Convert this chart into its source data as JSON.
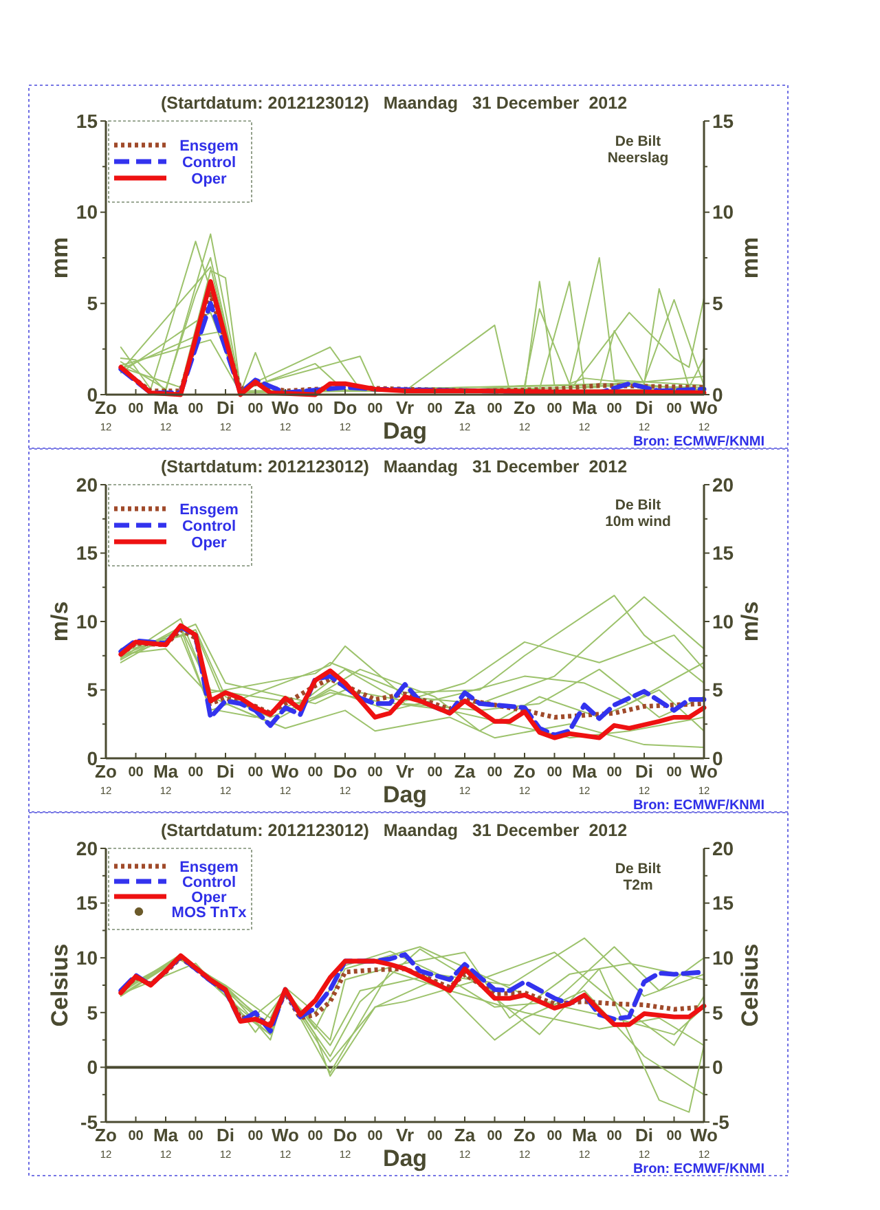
{
  "chart_data": [
    {
      "type": "line",
      "title": "(Startdatum: 2012123012)   Maandag   31 December  2012",
      "xlabel": "Dag",
      "ylabel": "mm",
      "y2label": "mm",
      "annotations": [
        "De Bilt",
        "Neerslag",
        "Bron: ECMWF/KNMI"
      ],
      "legend": "top left",
      "xlim": [
        "2012-12-30T12:00",
        "2013-01-09T12:00"
      ],
      "xticks": [
        {
          "value": "2012-12-30T12:00",
          "label": "Zo\n12"
        },
        {
          "value": "2012-12-31T00:00",
          "label": "00"
        },
        {
          "value": "2012-12-31T12:00",
          "label": "Ma\n12"
        },
        {
          "value": "2013-01-01T00:00",
          "label": "00"
        },
        {
          "value": "2013-01-01T12:00",
          "label": "Di\n12"
        },
        {
          "value": "2013-01-02T00:00",
          "label": "00"
        },
        {
          "value": "2013-01-02T12:00",
          "label": "Wo\n12"
        },
        {
          "value": "2013-01-03T00:00",
          "label": "00"
        },
        {
          "value": "2013-01-03T12:00",
          "label": "Do\n12"
        },
        {
          "value": "2013-01-04T00:00",
          "label": "00"
        },
        {
          "value": "2013-01-04T12:00",
          "label": "Vr"
        },
        {
          "value": "2013-01-05T00:00",
          "label": "00"
        },
        {
          "value": "2013-01-05T12:00",
          "label": "Za\n12"
        },
        {
          "value": "2013-01-06T00:00",
          "label": "00"
        },
        {
          "value": "2013-01-06T12:00",
          "label": "Zo\n12"
        },
        {
          "value": "2013-01-07T00:00",
          "label": "00"
        },
        {
          "value": "2013-01-07T12:00",
          "label": "Ma\n12"
        },
        {
          "value": "2013-01-08T00:00",
          "label": "00"
        },
        {
          "value": "2013-01-08T12:00",
          "label": "Di\n12"
        },
        {
          "value": "2013-01-09T00:00",
          "label": "00"
        },
        {
          "value": "2013-01-09T12:00",
          "label": "Wo\n12"
        }
      ],
      "ylim": [
        0,
        15
      ],
      "yticks": [
        0,
        {
          "value": 2.5,
          "label": null
        },
        5,
        {
          "value": 7.5,
          "label": null
        },
        10,
        {
          "value": 12.5,
          "label": null
        },
        15
      ],
      "y2lim": [
        0,
        15
      ],
      "y2ticks": [
        0,
        {
          "value": 2.5,
          "label": null
        },
        5,
        {
          "value": 7.5,
          "label": null
        },
        10,
        {
          "value": 12.5,
          "label": null
        },
        15
      ],
      "series": [
        {
          "color": "#9cc26b",
          "line_style": "solid",
          "x": [
            "2012-12-30T18:00",
            "2012-12-31T06:00",
            "2013-01-01T00:00",
            "2013-01-01T12:00",
            "2013-01-01T18:00",
            "2013-01-02T00:00",
            "2013-01-02T06:00",
            "2013-01-04T12:00",
            "2013-01-06T00:00",
            "2013-01-06T06:00",
            "2013-01-09T12:00"
          ],
          "values": [
            2.6,
            0.3,
            8.4,
            3,
            0.1,
            2.3,
            0.2,
            0.2,
            3.8,
            0.2,
            0.3
          ]
        },
        {
          "color": "#9cc26b",
          "line_style": "solid",
          "x": [
            "2012-12-30T18:00",
            "2012-12-31T00:00",
            "2012-12-31T12:00",
            "2013-01-01T06:00",
            "2013-01-01T18:00",
            "2013-01-03T06:00",
            "2013-01-03T18:00",
            "2013-01-06T12:00",
            "2013-01-06T18:00",
            "2013-01-07T00:00",
            "2013-01-09T12:00"
          ],
          "values": [
            2.0,
            1.9,
            0.2,
            8.8,
            0.3,
            2.6,
            0.3,
            0.2,
            6.2,
            0.5,
            0.4
          ]
        },
        {
          "color": "#9cc26b",
          "line_style": "solid",
          "x": [
            "2012-12-30T18:00",
            "2012-12-31T12:00",
            "2013-01-01T00:00",
            "2013-01-01T06:00",
            "2013-01-01T18:00",
            "2013-01-03T00:00",
            "2013-01-03T12:00",
            "2013-01-06T18:00",
            "2013-01-07T06:00",
            "2013-01-07T12:00",
            "2013-01-09T12:00"
          ],
          "values": [
            1.8,
            0.3,
            5.5,
            7.5,
            0.2,
            1.7,
            0.2,
            0.3,
            6.2,
            0.4,
            1.0
          ]
        },
        {
          "color": "#9cc26b",
          "line_style": "solid",
          "x": [
            "2012-12-30T18:00",
            "2012-12-31T18:00",
            "2013-01-01T06:00",
            "2013-01-01T12:00",
            "2013-01-01T18:00",
            "2013-01-03T18:00",
            "2013-01-04T00:00",
            "2013-01-07T06:00",
            "2013-01-07T18:00",
            "2013-01-08T00:00",
            "2013-01-09T12:00"
          ],
          "values": [
            1.5,
            0.4,
            6.8,
            6.4,
            0.3,
            2.1,
            0.3,
            0.5,
            7.5,
            0.8,
            0.5
          ]
        },
        {
          "color": "#9cc26b",
          "line_style": "solid",
          "x": [
            "2012-12-30T18:00",
            "2013-01-01T00:00",
            "2013-01-01T06:00",
            "2013-01-01T18:00",
            "2013-01-05T18:00",
            "2013-01-06T12:00",
            "2013-01-06T18:00",
            "2013-01-07T06:00",
            "2013-01-07T12:00",
            "2013-01-09T12:00"
          ],
          "values": [
            1.2,
            4.0,
            4.5,
            0.2,
            0.3,
            0.5,
            4.7,
            0.6,
            0.9,
            0.2
          ]
        },
        {
          "color": "#9cc26b",
          "line_style": "solid",
          "x": [
            "2012-12-30T18:00",
            "2013-01-01T00:00",
            "2013-01-01T12:00",
            "2013-01-01T18:00",
            "2013-01-07T18:00",
            "2013-01-08T00:00",
            "2013-01-08T12:00",
            "2013-01-08T18:00",
            "2013-01-09T06:00",
            "2013-01-09T12:00"
          ],
          "values": [
            1.4,
            3.2,
            3.5,
            0.1,
            0.4,
            3.5,
            0.6,
            5.8,
            0.4,
            2.0
          ]
        },
        {
          "color": "#9cc26b",
          "line_style": "solid",
          "x": [
            "2012-12-30T18:00",
            "2013-01-01T06:00",
            "2013-01-01T18:00",
            "2013-01-08T00:00",
            "2013-01-08T12:00",
            "2013-01-09T00:00",
            "2013-01-09T12:00"
          ],
          "values": [
            1.6,
            3.0,
            0.1,
            0.6,
            0.7,
            5.2,
            0.5
          ]
        },
        {
          "color": "#9cc26b",
          "line_style": "solid",
          "x": [
            "2012-12-30T18:00",
            "2013-01-01T06:00",
            "2013-01-01T18:00",
            "2013-01-07T06:00",
            "2013-01-08T06:00",
            "2013-01-09T00:00",
            "2013-01-09T06:00",
            "2013-01-09T12:00"
          ],
          "values": [
            1.3,
            7.0,
            0.2,
            0.2,
            4.5,
            2.0,
            1.5,
            5.3
          ]
        },
        {
          "name": "Ensgem",
          "color": "#a04a2a",
          "line_style": "dotted",
          "x": [
            "2012-12-30T18:00",
            "2012-12-31T06:00",
            "2012-12-31T18:00",
            "2013-01-01T06:00",
            "2013-01-01T18:00",
            "2013-01-02T00:00",
            "2013-01-02T12:00",
            "2013-01-03T12:00",
            "2013-01-04T12:00",
            "2013-01-05T18:00",
            "2013-01-07T00:00",
            "2013-01-07T18:00",
            "2013-01-09T12:00"
          ],
          "values": [
            1.4,
            0.2,
            0.2,
            5.5,
            0.3,
            0.6,
            0.2,
            0.4,
            0.3,
            0.2,
            0.3,
            0.5,
            0.4
          ]
        },
        {
          "name": "Control",
          "color": "#3333ee",
          "line_style": "dashed",
          "x": [
            "2012-12-30T18:00",
            "2012-12-31T06:00",
            "2012-12-31T18:00",
            "2013-01-01T06:00",
            "2013-01-01T18:00",
            "2013-01-02T00:00",
            "2013-01-02T12:00",
            "2013-01-03T12:00",
            "2013-01-04T00:00",
            "2013-01-05T18:00",
            "2013-01-07T18:00",
            "2013-01-08T06:00",
            "2013-01-08T18:00",
            "2013-01-09T12:00"
          ],
          "values": [
            1.4,
            0.1,
            0.1,
            5.0,
            0.1,
            0.8,
            0.1,
            0.4,
            0.3,
            0.2,
            0.1,
            0.6,
            0.2,
            0.3
          ]
        },
        {
          "name": "Oper",
          "color": "#ee1111",
          "line_style": "solid",
          "x": [
            "2012-12-30T18:00",
            "2012-12-31T00:00",
            "2012-12-31T06:00",
            "2012-12-31T18:00",
            "2013-01-01T06:00",
            "2013-01-01T18:00",
            "2013-01-02T00:00",
            "2013-01-02T06:00",
            "2013-01-03T00:00",
            "2013-01-03T06:00",
            "2013-01-03T12:00",
            "2013-01-04T00:00",
            "2013-01-04T12:00",
            "2013-01-05T18:00",
            "2013-01-07T00:00",
            "2013-01-08T06:00",
            "2013-01-09T12:00"
          ],
          "values": [
            1.5,
            0.8,
            0.1,
            0.0,
            6.2,
            0.0,
            0.7,
            0.1,
            0.0,
            0.6,
            0.6,
            0.3,
            0.2,
            0.2,
            0.15,
            0.15,
            0.1
          ]
        }
      ]
    },
    {
      "type": "line",
      "title": "(Startdatum: 2012123012)   Maandag   31 December  2012",
      "xlabel": "Dag",
      "ylabel": "m/s",
      "y2label": "m/s",
      "annotations": [
        "De Bilt",
        "10m wind",
        "Bron: ECMWF/KNMI"
      ],
      "legend": "top left",
      "xlim": [
        "2012-12-30T12:00",
        "2013-01-09T12:00"
      ],
      "xticks": [
        {
          "value": "2012-12-30T12:00",
          "label": "Zo\n12"
        },
        {
          "value": "2012-12-31T00:00",
          "label": "00"
        },
        {
          "value": "2012-12-31T12:00",
          "label": "Ma\n12"
        },
        {
          "value": "2013-01-01T00:00",
          "label": "00"
        },
        {
          "value": "2013-01-01T12:00",
          "label": "Di\n12"
        },
        {
          "value": "2013-01-02T00:00",
          "label": "00"
        },
        {
          "value": "2013-01-02T12:00",
          "label": "Wo\n12"
        },
        {
          "value": "2013-01-03T00:00",
          "label": "00"
        },
        {
          "value": "2013-01-03T12:00",
          "label": "Do\n12"
        },
        {
          "value": "2013-01-04T00:00",
          "label": "00"
        },
        {
          "value": "2013-01-04T12:00",
          "label": "Vr"
        },
        {
          "value": "2013-01-05T00:00",
          "label": "00"
        },
        {
          "value": "2013-01-05T12:00",
          "label": "Za\n12"
        },
        {
          "value": "2013-01-06T00:00",
          "label": "00"
        },
        {
          "value": "2013-01-06T12:00",
          "label": "Zo\n12"
        },
        {
          "value": "2013-01-07T00:00",
          "label": "00"
        },
        {
          "value": "2013-01-07T12:00",
          "label": "Ma\n12"
        },
        {
          "value": "2013-01-08T00:00",
          "label": "00"
        },
        {
          "value": "2013-01-08T12:00",
          "label": "Di\n12"
        },
        {
          "value": "2013-01-09T00:00",
          "label": "00"
        },
        {
          "value": "2013-01-09T12:00",
          "label": "Wo\n12"
        }
      ],
      "ylim": [
        0,
        20
      ],
      "yticks": [
        0,
        {
          "value": 2.5,
          "label": null
        },
        5,
        {
          "value": 7.5,
          "label": null
        },
        10,
        {
          "value": 12.5,
          "label": null
        },
        15,
        {
          "value": 17.5,
          "label": null
        },
        20
      ],
      "y2lim": [
        0,
        20
      ],
      "y2ticks": [
        0,
        {
          "value": 2.5,
          "label": null
        },
        5,
        {
          "value": 7.5,
          "label": null
        },
        10,
        {
          "value": 12.5,
          "label": null
        },
        15,
        {
          "value": 17.5,
          "label": null
        },
        20
      ],
      "series": [
        {
          "color": "#9cc26b",
          "line_style": "solid",
          "x": [
            "2012-12-30T18:00",
            "2012-12-31T18:00",
            "2013-01-01T06:00",
            "2013-01-03T00:00",
            "2013-01-03T06:00",
            "2013-01-04T12:00",
            "2013-01-05T18:00",
            "2013-01-06T12:00",
            "2013-01-08T00:00",
            "2013-01-08T12:00",
            "2013-01-09T12:00"
          ],
          "values": [
            7.3,
            10.2,
            4.8,
            6.2,
            7.0,
            4.8,
            5.0,
            7.5,
            11.9,
            9.0,
            5.5
          ]
        },
        {
          "color": "#9cc26b",
          "line_style": "solid",
          "x": [
            "2012-12-30T18:00",
            "2012-12-31T18:00",
            "2013-01-01T06:00",
            "2013-01-03T06:00",
            "2013-01-03T12:00",
            "2013-01-04T12:00",
            "2013-01-05T18:00",
            "2013-01-07T00:00",
            "2013-01-08T12:00",
            "2013-01-09T12:00"
          ],
          "values": [
            7.0,
            9.5,
            3.5,
            6.8,
            8.2,
            4.5,
            4.0,
            6.0,
            11.8,
            8.0
          ]
        },
        {
          "color": "#9cc26b",
          "line_style": "solid",
          "x": [
            "2012-12-30T18:00",
            "2013-01-01T00:00",
            "2013-01-01T12:00",
            "2013-01-03T00:00",
            "2013-01-03T12:00",
            "2013-01-04T12:00",
            "2013-01-05T12:00",
            "2013-01-06T12:00",
            "2013-01-07T18:00",
            "2013-01-09T00:00",
            "2013-01-09T12:00"
          ],
          "values": [
            7.5,
            9.8,
            5.5,
            4.0,
            5.0,
            4.2,
            5.5,
            8.5,
            7.0,
            9.0,
            6.5
          ]
        },
        {
          "color": "#9cc26b",
          "line_style": "solid",
          "x": [
            "2012-12-30T18:00",
            "2013-01-01T00:00",
            "2013-01-01T12:00",
            "2013-01-02T12:00",
            "2013-01-03T12:00",
            "2013-01-04T00:00",
            "2013-01-05T06:00",
            "2013-01-06T00:00",
            "2013-01-07T06:00",
            "2013-01-08T12:00",
            "2013-01-09T12:00"
          ],
          "values": [
            7.8,
            9.2,
            4.0,
            2.2,
            3.5,
            2.0,
            3.0,
            1.5,
            2.5,
            1.0,
            0.8
          ]
        },
        {
          "color": "#9cc26b",
          "line_style": "solid",
          "x": [
            "2012-12-30T18:00",
            "2012-12-31T18:00",
            "2013-01-01T06:00",
            "2013-01-02T00:00",
            "2013-01-03T00:00",
            "2013-01-03T18:00",
            "2013-01-05T00:00",
            "2013-01-05T18:00",
            "2013-01-06T18:00",
            "2013-01-07T18:00",
            "2013-01-08T18:00",
            "2013-01-09T12:00"
          ],
          "values": [
            8.0,
            9.0,
            3.6,
            3.0,
            4.5,
            6.5,
            4.5,
            2.0,
            4.5,
            3.0,
            5.0,
            2.0
          ]
        },
        {
          "color": "#9cc26b",
          "line_style": "solid",
          "x": [
            "2012-12-30T18:00",
            "2012-12-31T12:00",
            "2013-01-01T06:00",
            "2013-01-02T06:00",
            "2013-01-03T06:00",
            "2013-01-04T06:00",
            "2013-01-05T12:00",
            "2013-01-06T12:00",
            "2013-01-07T12:00",
            "2013-01-08T06:00",
            "2013-01-09T12:00"
          ],
          "values": [
            7.6,
            8.0,
            4.5,
            2.6,
            5.0,
            3.5,
            4.8,
            6.0,
            5.5,
            4.0,
            7.0
          ]
        },
        {
          "color": "#9cc26b",
          "line_style": "solid",
          "x": [
            "2012-12-30T18:00",
            "2012-12-31T18:00",
            "2013-01-01T06:00",
            "2013-01-02T18:00",
            "2013-01-03T12:00",
            "2013-01-04T12:00",
            "2013-01-05T18:00",
            "2013-01-06T18:00",
            "2013-01-07T18:00",
            "2013-01-08T18:00",
            "2013-01-09T12:00"
          ],
          "values": [
            7.2,
            9.6,
            5.0,
            4.0,
            6.5,
            4.0,
            3.5,
            4.0,
            6.5,
            3.0,
            4.5
          ]
        },
        {
          "color": "#9cc26b",
          "line_style": "solid",
          "x": [
            "2012-12-30T18:00",
            "2013-01-01T00:00",
            "2013-01-01T12:00",
            "2013-01-02T06:00",
            "2013-01-03T06:00",
            "2013-01-04T00:00",
            "2013-01-05T06:00",
            "2013-01-06T06:00",
            "2013-01-07T06:00",
            "2013-01-08T06:00",
            "2013-01-09T12:00"
          ],
          "values": [
            7.4,
            9.4,
            4.5,
            3.0,
            4.8,
            4.2,
            3.5,
            2.5,
            1.5,
            2.0,
            3.0
          ]
        },
        {
          "name": "Ensgem",
          "color": "#a04a2a",
          "line_style": "dotted",
          "x": [
            "2012-12-30T18:00",
            "2012-12-31T00:00",
            "2012-12-31T12:00",
            "2012-12-31T18:00",
            "2013-01-01T00:00",
            "2013-01-01T06:00",
            "2013-01-01T12:00",
            "2013-01-02T00:00",
            "2013-01-02T06:00",
            "2013-01-02T12:00",
            "2013-01-03T00:00",
            "2013-01-03T06:00",
            "2013-01-03T12:00",
            "2013-01-04T00:00",
            "2013-01-04T12:00",
            "2013-01-05T06:00",
            "2013-01-05T12:00",
            "2013-01-06T12:00",
            "2013-01-07T00:00",
            "2013-01-08T00:00",
            "2013-01-08T12:00",
            "2013-01-09T12:00"
          ],
          "values": [
            7.6,
            8.4,
            8.3,
            9.4,
            8.8,
            4.0,
            4.4,
            3.8,
            3.3,
            4.0,
            5.3,
            5.8,
            5.3,
            4.3,
            4.7,
            3.6,
            4.3,
            3.5,
            3.0,
            3.3,
            3.8,
            4.0
          ]
        },
        {
          "name": "Control",
          "color": "#3333ee",
          "line_style": "dashed",
          "x": [
            "2012-12-30T18:00",
            "2012-12-31T00:00",
            "2012-12-31T12:00",
            "2012-12-31T18:00",
            "2013-01-01T00:00",
            "2013-01-01T06:00",
            "2013-01-01T12:00",
            "2013-01-01T18:00",
            "2013-01-02T00:00",
            "2013-01-02T06:00",
            "2013-01-02T12:00",
            "2013-01-02T18:00",
            "2013-01-03T00:00",
            "2013-01-03T06:00",
            "2013-01-03T12:00",
            "2013-01-03T18:00",
            "2013-01-04T00:00",
            "2013-01-04T06:00",
            "2013-01-04T12:00",
            "2013-01-04T18:00",
            "2013-01-05T06:00",
            "2013-01-05T12:00",
            "2013-01-05T18:00",
            "2013-01-06T00:00",
            "2013-01-06T12:00",
            "2013-01-06T18:00",
            "2013-01-07T00:00",
            "2013-01-07T06:00",
            "2013-01-07T12:00",
            "2013-01-07T18:00",
            "2013-01-08T00:00",
            "2013-01-08T12:00",
            "2013-01-09T00:00",
            "2013-01-09T06:00",
            "2013-01-09T12:00"
          ],
          "values": [
            7.8,
            8.6,
            8.4,
            9.6,
            9.0,
            3.0,
            4.2,
            4.0,
            3.5,
            2.4,
            3.7,
            3.2,
            5.8,
            6.0,
            5.2,
            4.4,
            4.0,
            4.0,
            5.4,
            4.2,
            3.3,
            4.8,
            4.0,
            3.9,
            3.7,
            2.2,
            1.7,
            2.0,
            3.9,
            2.9,
            3.9,
            4.9,
            3.5,
            4.3,
            4.3
          ]
        },
        {
          "name": "Oper",
          "color": "#ee1111",
          "line_style": "solid",
          "x": [
            "2012-12-30T18:00",
            "2012-12-31T00:00",
            "2012-12-31T12:00",
            "2012-12-31T18:00",
            "2013-01-01T00:00",
            "2013-01-01T06:00",
            "2013-01-01T12:00",
            "2013-01-01T18:00",
            "2013-01-02T00:00",
            "2013-01-02T06:00",
            "2013-01-02T12:00",
            "2013-01-02T18:00",
            "2013-01-03T00:00",
            "2013-01-03T06:00",
            "2013-01-03T12:00",
            "2013-01-04T00:00",
            "2013-01-04T06:00",
            "2013-01-04T12:00",
            "2013-01-04T18:00",
            "2013-01-05T06:00",
            "2013-01-05T12:00",
            "2013-01-06T00:00",
            "2013-01-06T06:00",
            "2013-01-06T12:00",
            "2013-01-06T18:00",
            "2013-01-07T00:00",
            "2013-01-07T06:00",
            "2013-01-07T18:00",
            "2013-01-08T00:00",
            "2013-01-08T06:00",
            "2013-01-08T18:00",
            "2013-01-09T00:00",
            "2013-01-09T06:00",
            "2013-01-09T12:00"
          ],
          "values": [
            7.6,
            8.5,
            8.3,
            9.7,
            9.0,
            4.2,
            4.8,
            4.4,
            3.7,
            3.2,
            4.4,
            3.6,
            5.7,
            6.4,
            5.5,
            3.0,
            3.3,
            4.5,
            4.2,
            3.3,
            4.2,
            2.7,
            2.7,
            3.4,
            1.9,
            1.5,
            1.8,
            1.5,
            2.4,
            2.2,
            2.7,
            3.0,
            3.0,
            3.7
          ]
        }
      ]
    },
    {
      "type": "line",
      "title": "(Startdatum: 2012123012)   Maandag   31 December  2012",
      "xlabel": "Dag",
      "ylabel": "Celsius",
      "y2label": "Celsius",
      "annotations": [
        "De Bilt",
        "T2m",
        "Bron: ECMWF/KNMI"
      ],
      "legend": "top left",
      "xlim": [
        "2012-12-30T12:00",
        "2013-01-09T12:00"
      ],
      "xticks": [
        {
          "value": "2012-12-30T12:00",
          "label": "Zo\n12"
        },
        {
          "value": "2012-12-31T00:00",
          "label": "00"
        },
        {
          "value": "2012-12-31T12:00",
          "label": "Ma\n12"
        },
        {
          "value": "2013-01-01T00:00",
          "label": "00"
        },
        {
          "value": "2013-01-01T12:00",
          "label": "Di\n12"
        },
        {
          "value": "2013-01-02T00:00",
          "label": "00"
        },
        {
          "value": "2013-01-02T12:00",
          "label": "Wo\n12"
        },
        {
          "value": "2013-01-03T00:00",
          "label": "00"
        },
        {
          "value": "2013-01-03T12:00",
          "label": "Do\n12"
        },
        {
          "value": "2013-01-04T00:00",
          "label": "00"
        },
        {
          "value": "2013-01-04T12:00",
          "label": "Vr"
        },
        {
          "value": "2013-01-05T00:00",
          "label": "00"
        },
        {
          "value": "2013-01-05T12:00",
          "label": "Za\n12"
        },
        {
          "value": "2013-01-06T00:00",
          "label": "00"
        },
        {
          "value": "2013-01-06T12:00",
          "label": "Zo\n12"
        },
        {
          "value": "2013-01-07T00:00",
          "label": "00"
        },
        {
          "value": "2013-01-07T12:00",
          "label": "Ma\n12"
        },
        {
          "value": "2013-01-08T00:00",
          "label": "00"
        },
        {
          "value": "2013-01-08T12:00",
          "label": "Di\n12"
        },
        {
          "value": "2013-01-09T00:00",
          "label": "00"
        },
        {
          "value": "2013-01-09T12:00",
          "label": "Wo\n12"
        }
      ],
      "ylim": [
        -5,
        20
      ],
      "yticks": [
        -5,
        {
          "value": -2.5,
          "label": null
        },
        0,
        {
          "value": 2.5,
          "label": null
        },
        5,
        {
          "value": 7.5,
          "label": null
        },
        10,
        {
          "value": 12.5,
          "label": null
        },
        15,
        {
          "value": 17.5,
          "label": null
        },
        20
      ],
      "y2lim": [
        -5,
        20
      ],
      "y2ticks": [
        -5,
        {
          "value": -2.5,
          "label": null
        },
        0,
        {
          "value": 2.5,
          "label": null
        },
        5,
        {
          "value": 7.5,
          "label": null
        },
        10,
        {
          "value": 12.5,
          "label": null
        },
        15,
        {
          "value": 17.5,
          "label": null
        },
        20
      ],
      "ref_lines": [
        {
          "axis": "y",
          "value": 0,
          "color": "#4a4a30"
        }
      ],
      "series": [
        {
          "color": "#9cc26b",
          "line_style": "solid",
          "x": [
            "2012-12-30T18:00",
            "2012-12-31T18:00",
            "2013-01-01T12:00",
            "2013-01-02T06:00",
            "2013-01-02T12:00",
            "2013-01-03T00:00",
            "2013-01-03T06:00",
            "2013-01-04T00:00",
            "2013-01-04T12:00",
            "2013-01-05T18:00",
            "2013-01-07T00:00",
            "2013-01-08T00:00",
            "2013-01-09T00:00",
            "2013-01-09T12:00"
          ],
          "values": [
            6.6,
            10.1,
            7.0,
            3.5,
            7.2,
            3.0,
            -0.8,
            5.5,
            6.0,
            8.0,
            10.5,
            6.0,
            2.0,
            6.5
          ]
        },
        {
          "color": "#9cc26b",
          "line_style": "solid",
          "x": [
            "2012-12-30T18:00",
            "2012-12-31T18:00",
            "2013-01-01T12:00",
            "2013-01-02T06:00",
            "2013-01-02T12:00",
            "2013-01-03T06:00",
            "2013-01-03T18:00",
            "2013-01-04T18:00",
            "2013-01-05T18:00",
            "2013-01-06T18:00",
            "2013-01-07T18:00",
            "2013-01-08T18:00",
            "2013-01-09T06:00",
            "2013-01-09T12:00"
          ],
          "values": [
            7.0,
            9.8,
            7.3,
            2.5,
            7.0,
            1.0,
            6.0,
            10.8,
            7.5,
            3.0,
            9.0,
            -3.0,
            -4.1,
            2.0
          ]
        },
        {
          "color": "#9cc26b",
          "line_style": "solid",
          "x": [
            "2012-12-30T18:00",
            "2012-12-31T18:00",
            "2013-01-01T12:00",
            "2013-01-02T06:00",
            "2013-01-02T12:00",
            "2013-01-03T06:00",
            "2013-01-03T12:00",
            "2013-01-04T12:00",
            "2013-01-05T12:00",
            "2013-01-06T06:00",
            "2013-01-07T06:00",
            "2013-01-08T06:00",
            "2013-01-09T12:00"
          ],
          "values": [
            6.8,
            10.3,
            6.5,
            3.0,
            6.8,
            2.5,
            8.0,
            9.5,
            10.5,
            4.5,
            8.5,
            9.5,
            8.0
          ]
        },
        {
          "color": "#9cc26b",
          "line_style": "solid",
          "x": [
            "2012-12-30T18:00",
            "2012-12-31T18:00",
            "2013-01-01T12:00",
            "2013-01-02T06:00",
            "2013-01-02T12:00",
            "2013-01-03T00:00",
            "2013-01-03T12:00",
            "2013-01-04T06:00",
            "2013-01-05T06:00",
            "2013-01-06T00:00",
            "2013-01-07T00:00",
            "2013-01-08T00:00",
            "2013-01-08T18:00",
            "2013-01-09T12:00"
          ],
          "values": [
            7.2,
            9.9,
            7.5,
            4.5,
            7.3,
            5.0,
            9.3,
            10.6,
            8.0,
            5.5,
            6.0,
            11.0,
            7.0,
            10.0
          ]
        },
        {
          "color": "#9cc26b",
          "line_style": "solid",
          "x": [
            "2012-12-30T18:00",
            "2012-12-31T18:00",
            "2013-01-01T12:00",
            "2013-01-02T00:00",
            "2013-01-02T12:00",
            "2013-01-03T06:00",
            "2013-01-04T00:00",
            "2013-01-05T00:00",
            "2013-01-06T00:00",
            "2013-01-06T12:00",
            "2013-01-07T12:00",
            "2013-01-08T12:00",
            "2013-01-09T12:00"
          ],
          "values": [
            6.5,
            10.0,
            7.0,
            3.2,
            6.9,
            0.5,
            5.5,
            8.0,
            2.5,
            4.5,
            7.0,
            1.0,
            -2.5
          ]
        },
        {
          "color": "#9cc26b",
          "line_style": "solid",
          "x": [
            "2012-12-30T18:00",
            "2012-12-31T18:00",
            "2013-01-01T12:00",
            "2013-01-02T06:00",
            "2013-01-02T12:00",
            "2013-01-03T00:00",
            "2013-01-03T12:00",
            "2013-01-04T18:00",
            "2013-01-05T18:00",
            "2013-01-06T18:00",
            "2013-01-08T00:00",
            "2013-01-09T00:00",
            "2013-01-09T12:00"
          ],
          "values": [
            6.9,
            10.2,
            7.2,
            3.8,
            7.1,
            3.5,
            9.0,
            11.0,
            8.5,
            6.0,
            4.5,
            3.0,
            5.5
          ]
        },
        {
          "color": "#9cc26b",
          "line_style": "solid",
          "x": [
            "2012-12-30T18:00",
            "2013-01-01T00:00",
            "2013-01-01T18:00",
            "2013-01-02T06:00",
            "2013-01-02T12:00",
            "2013-01-03T06:00",
            "2013-01-03T18:00",
            "2013-01-05T00:00",
            "2013-01-06T06:00",
            "2013-01-07T12:00",
            "2013-01-08T12:00",
            "2013-01-09T12:00"
          ],
          "values": [
            6.7,
            9.5,
            5.0,
            3.0,
            7.0,
            2.0,
            7.0,
            8.5,
            7.5,
            11.8,
            6.5,
            8.5
          ]
        },
        {
          "color": "#9cc26b",
          "line_style": "solid",
          "x": [
            "2012-12-30T18:00",
            "2012-12-31T18:00",
            "2013-01-01T12:00",
            "2013-01-02T00:00",
            "2013-01-02T12:00",
            "2013-01-03T06:00",
            "2013-01-04T06:00",
            "2013-01-05T06:00",
            "2013-01-06T12:00",
            "2013-01-07T18:00",
            "2013-01-08T18:00",
            "2013-01-09T12:00"
          ],
          "values": [
            7.1,
            10.1,
            7.4,
            4.8,
            7.0,
            -0.5,
            8.8,
            7.0,
            5.0,
            3.5,
            4.5,
            2.0
          ]
        },
        {
          "name": "Ensgem",
          "color": "#a04a2a",
          "line_style": "dotted",
          "x": [
            "2012-12-30T18:00",
            "2012-12-31T00:00",
            "2012-12-31T06:00",
            "2012-12-31T12:00",
            "2012-12-31T18:00",
            "2013-01-01T00:00",
            "2013-01-01T06:00",
            "2013-01-01T12:00",
            "2013-01-01T18:00",
            "2013-01-02T00:00",
            "2013-01-02T06:00",
            "2013-01-02T12:00",
            "2013-01-02T18:00",
            "2013-01-03T00:00",
            "2013-01-03T06:00",
            "2013-01-03T12:00",
            "2013-01-04T00:00",
            "2013-01-04T12:00",
            "2013-01-05T06:00",
            "2013-01-05T12:00",
            "2013-01-06T00:00",
            "2013-01-06T12:00",
            "2013-01-07T00:00",
            "2013-01-07T12:00",
            "2013-01-08T00:00",
            "2013-01-08T12:00",
            "2013-01-09T00:00",
            "2013-01-09T12:00"
          ],
          "values": [
            6.9,
            8.2,
            7.6,
            8.7,
            10.0,
            9.0,
            7.9,
            7.0,
            4.5,
            4.6,
            3.9,
            6.8,
            4.5,
            4.8,
            6.0,
            8.7,
            8.9,
            9.0,
            7.3,
            8.5,
            6.7,
            6.8,
            5.8,
            6.0,
            5.8,
            5.7,
            5.3,
            5.5
          ]
        },
        {
          "name": "Control",
          "color": "#3333ee",
          "line_style": "dashed",
          "x": [
            "2012-12-30T18:00",
            "2012-12-31T00:00",
            "2012-12-31T06:00",
            "2012-12-31T12:00",
            "2012-12-31T18:00",
            "2013-01-01T00:00",
            "2013-01-01T06:00",
            "2013-01-01T12:00",
            "2013-01-01T18:00",
            "2013-01-02T00:00",
            "2013-01-02T06:00",
            "2013-01-02T12:00",
            "2013-01-02T18:00",
            "2013-01-03T00:00",
            "2013-01-03T06:00",
            "2013-01-03T12:00",
            "2013-01-04T00:00",
            "2013-01-04T06:00",
            "2013-01-04T12:00",
            "2013-01-04T18:00",
            "2013-01-05T06:00",
            "2013-01-05T12:00",
            "2013-01-06T00:00",
            "2013-01-06T06:00",
            "2013-01-06T12:00",
            "2013-01-07T00:00",
            "2013-01-07T06:00",
            "2013-01-07T12:00",
            "2013-01-07T18:00",
            "2013-01-08T00:00",
            "2013-01-08T06:00",
            "2013-01-08T12:00",
            "2013-01-08T18:00",
            "2013-01-09T00:00",
            "2013-01-09T12:00"
          ],
          "values": [
            7.0,
            8.4,
            7.5,
            8.8,
            10.1,
            9.0,
            7.9,
            7.0,
            4.2,
            5.0,
            3.3,
            7.1,
            4.6,
            5.4,
            7.1,
            9.7,
            9.7,
            9.9,
            10.3,
            8.8,
            8.0,
            9.4,
            7.1,
            7.0,
            7.8,
            6.3,
            5.8,
            6.6,
            4.8,
            4.4,
            4.6,
            7.8,
            8.6,
            8.5,
            8.7
          ]
        },
        {
          "name": "Oper",
          "color": "#ee1111",
          "line_style": "solid",
          "x": [
            "2012-12-30T18:00",
            "2012-12-31T00:00",
            "2012-12-31T06:00",
            "2012-12-31T12:00",
            "2012-12-31T18:00",
            "2013-01-01T00:00",
            "2013-01-01T06:00",
            "2013-01-01T12:00",
            "2013-01-01T18:00",
            "2013-01-02T00:00",
            "2013-01-02T06:00",
            "2013-01-02T12:00",
            "2013-01-02T18:00",
            "2013-01-03T00:00",
            "2013-01-03T06:00",
            "2013-01-03T12:00",
            "2013-01-04T00:00",
            "2013-01-04T06:00",
            "2013-01-04T12:00",
            "2013-01-05T06:00",
            "2013-01-05T12:00",
            "2013-01-06T00:00",
            "2013-01-06T06:00",
            "2013-01-06T12:00",
            "2013-01-07T00:00",
            "2013-01-07T06:00",
            "2013-01-07T12:00",
            "2013-01-07T18:00",
            "2013-01-08T00:00",
            "2013-01-08T06:00",
            "2013-01-08T12:00",
            "2013-01-09T00:00",
            "2013-01-09T06:00",
            "2013-01-09T12:00"
          ],
          "values": [
            6.8,
            8.3,
            7.5,
            8.8,
            10.2,
            9.1,
            8.0,
            7.1,
            4.2,
            4.4,
            3.8,
            7.1,
            4.8,
            6.1,
            8.2,
            9.7,
            9.7,
            9.4,
            9.0,
            7.0,
            9.0,
            6.3,
            6.3,
            6.6,
            5.4,
            5.8,
            6.6,
            5.2,
            3.9,
            3.9,
            4.9,
            4.6,
            4.6,
            5.6
          ]
        },
        {
          "name": "MOS TnTx",
          "type": "scatter",
          "marker": "circle",
          "color": "#6b5a2a"
        }
      ]
    }
  ]
}
